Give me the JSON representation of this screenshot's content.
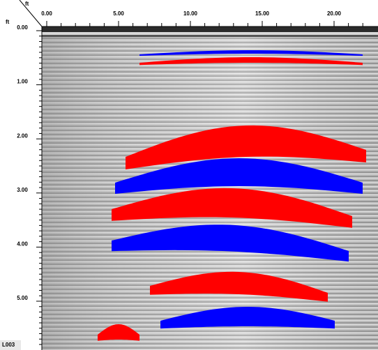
{
  "corner": {
    "x_unit": "ft",
    "y_unit": "ft"
  },
  "x_axis": {
    "labels": [
      "0.00",
      "5.00",
      "10.00",
      "15.00",
      "20.00"
    ]
  },
  "y_axis": {
    "labels": [
      "0.00",
      "1.00",
      "2.00",
      "3.00",
      "4.00",
      "5.00"
    ]
  },
  "file_label": "L003"
}
